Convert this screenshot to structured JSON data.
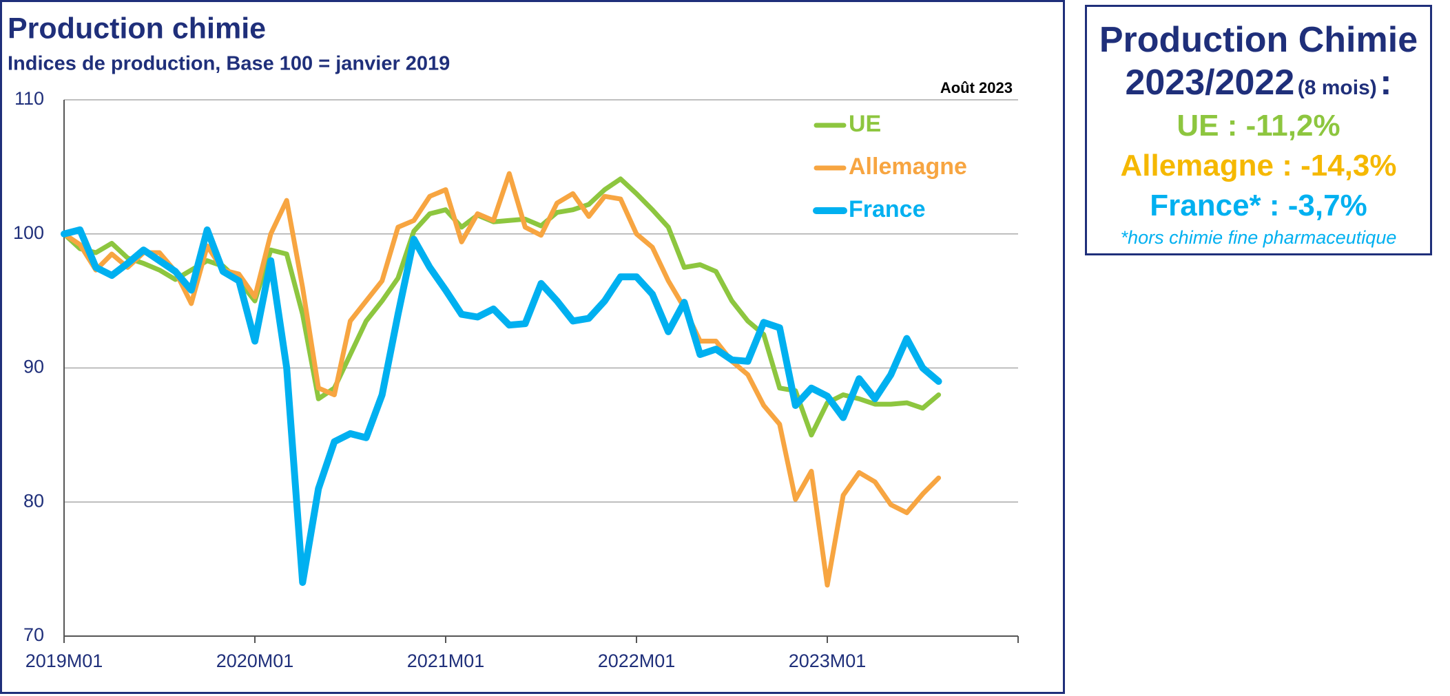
{
  "chart_data": {
    "type": "line",
    "title": "Production chimie",
    "subtitle": "Indices de production, Base 100 = janvier 2019",
    "annotation": "Août 2023",
    "categories": [
      "2019M01",
      null,
      null,
      null,
      null,
      null,
      null,
      null,
      null,
      null,
      null,
      null,
      "2020M01",
      null,
      null,
      null,
      null,
      null,
      null,
      null,
      null,
      null,
      null,
      null,
      "2021M01",
      null,
      null,
      null,
      null,
      null,
      null,
      null,
      null,
      null,
      null,
      null,
      "2022M01",
      null,
      null,
      null,
      null,
      null,
      null,
      null,
      null,
      null,
      null,
      null,
      "2023M01",
      null,
      null,
      null,
      null,
      null,
      null,
      null
    ],
    "series": [
      {
        "name": "UE",
        "color": "#8dc63f",
        "values": [
          100,
          98.9,
          98.6,
          99.3,
          98.2,
          97.8,
          97.3,
          96.6,
          97.3,
          98,
          97.6,
          96.5,
          95,
          98.8,
          98.5,
          94,
          87.7,
          88.5,
          91,
          93.5,
          95,
          96.7,
          100.2,
          101.5,
          101.8,
          100.5,
          101.4,
          100.9,
          101,
          101.1,
          100.6,
          101.6,
          101.8,
          102.2,
          103.3,
          104.1,
          103,
          101.8,
          100.5,
          97.5,
          97.7,
          97.2,
          95,
          93.5,
          92.5,
          88.5,
          88.3,
          85,
          87.4,
          88,
          87.7,
          87.3,
          87.3,
          87.4,
          87,
          88
        ]
      },
      {
        "name": "Allemagne",
        "color": "#f7a541",
        "values": [
          100,
          99.2,
          97.3,
          98.5,
          97.5,
          98.6,
          98.6,
          97.2,
          94.8,
          99.1,
          97.3,
          97,
          95.3,
          100,
          102.5,
          96,
          88.5,
          88,
          93.5,
          95,
          96.5,
          100.5,
          101,
          102.8,
          103.3,
          99.4,
          101.5,
          101,
          104.5,
          100.5,
          99.9,
          102.3,
          103,
          101.3,
          102.8,
          102.6,
          100,
          99,
          96.5,
          94.5,
          92,
          92,
          90.5,
          89.5,
          87.2,
          85.8,
          80.2,
          82.3,
          73.8,
          80.5,
          82.2,
          81.5,
          79.8,
          79.2,
          80.6,
          81.8
        ]
      },
      {
        "name": "France",
        "color": "#00b0f0",
        "values": [
          100,
          100.3,
          97.5,
          96.9,
          97.8,
          98.8,
          98,
          97.2,
          95.8,
          100.3,
          97.2,
          96.5,
          92,
          98,
          90,
          74,
          81,
          84.5,
          85.1,
          84.8,
          88,
          94,
          99.6,
          97.5,
          95.8,
          94,
          93.8,
          94.4,
          93.2,
          93.3,
          96.3,
          95,
          93.5,
          93.7,
          95,
          96.8,
          96.8,
          95.5,
          92.7,
          94.9,
          91,
          91.4,
          90.6,
          90.5,
          93.4,
          93,
          87.2,
          88.5,
          87.9,
          86.3,
          89.2,
          87.7,
          89.5,
          92.2,
          90,
          89
        ]
      }
    ],
    "ylim": [
      70,
      110
    ],
    "yticks": [
      70,
      80,
      90,
      100,
      110
    ],
    "grid": true,
    "legend": "top-right"
  },
  "summary": {
    "title": "Production Chimie",
    "period": "2023/2022",
    "period_note": "(8 mois)",
    "colon": ":",
    "items": [
      {
        "text": "UE : -11,2%",
        "color": "#8dc63f"
      },
      {
        "text": "Allemagne : -14,3%",
        "color": "#f5b800"
      },
      {
        "text": "France* : -3,7%",
        "color": "#00b0f0"
      }
    ],
    "footnote": "*hors chimie fine pharmaceutique",
    "footnote_color": "#00b0f0"
  }
}
